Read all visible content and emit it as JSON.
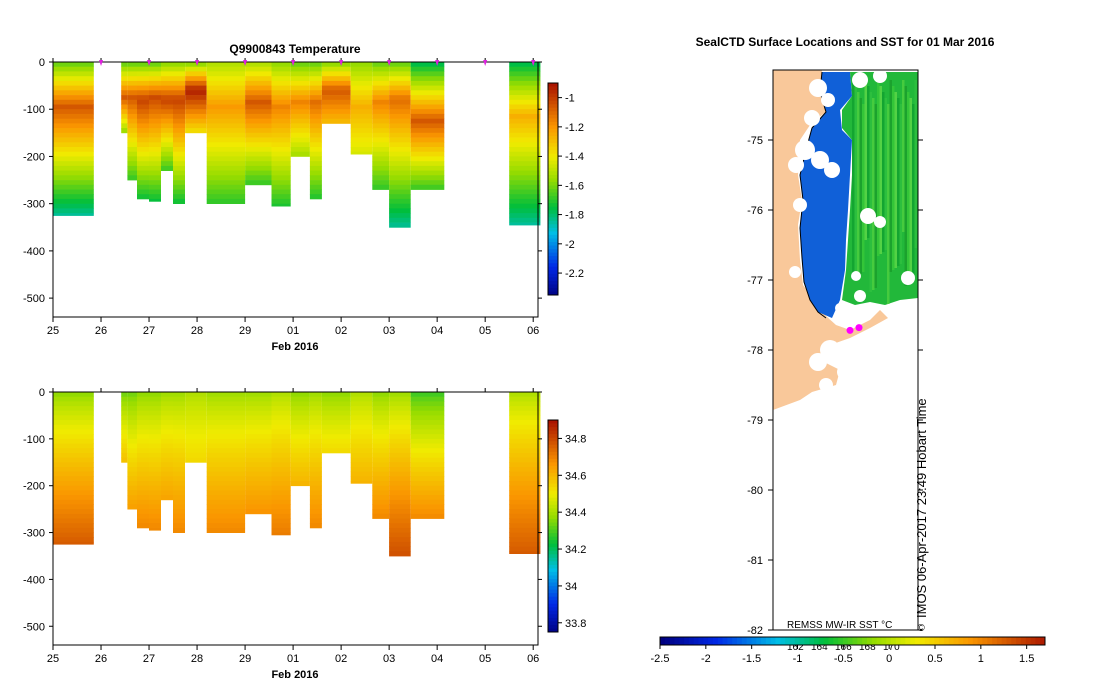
{
  "chart_data": [
    {
      "type": "heatmap",
      "id": "temperature",
      "title": "Q9900843  Temperature",
      "xlabel": "Feb 2016",
      "x_ticks": [
        "25",
        "26",
        "27",
        "28",
        "29",
        "01",
        "02",
        "03",
        "04",
        "05",
        "06"
      ],
      "xlim": [
        0,
        10.1
      ],
      "ylim": [
        -540,
        0
      ],
      "y_ticks": [
        0,
        -100,
        -200,
        -300,
        -400,
        -500
      ],
      "y_tick_labels": [
        "0",
        "-100",
        "-200",
        "-300",
        "-400",
        "-500"
      ],
      "colorbar": {
        "min": -2.35,
        "max": -0.9,
        "ticks": [
          -1,
          -1.2,
          -1.4,
          -1.6,
          -1.8,
          -2,
          -2.2
        ],
        "tick_labels": [
          "-1",
          "-1.2",
          "-1.4",
          "-1.6",
          "-1.8",
          "-2",
          "-2.2"
        ]
      },
      "profile_markers_x": [
        1,
        2,
        3,
        4,
        5,
        6,
        7,
        8,
        9,
        10
      ],
      "profiles": [
        {
          "x0": 0.0,
          "x1": 0.85,
          "depth": 325,
          "surface": -1.6,
          "core_depth": 90,
          "core": -1.05,
          "deep": -1.85
        },
        {
          "x0": 1.42,
          "x1": 1.55,
          "depth": 150,
          "surface": -1.6,
          "core_depth": 70,
          "core": -1.05,
          "deep": -1.6
        },
        {
          "x0": 1.55,
          "x1": 1.75,
          "depth": 250,
          "surface": -1.6,
          "core_depth": 70,
          "core": -1.05,
          "deep": -1.7
        },
        {
          "x0": 1.75,
          "x1": 2.0,
          "depth": 290,
          "surface": -1.6,
          "core_depth": 75,
          "core": -1.0,
          "deep": -1.75
        },
        {
          "x0": 2.0,
          "x1": 2.25,
          "depth": 295,
          "surface": -1.6,
          "core_depth": 70,
          "core": -1.02,
          "deep": -1.75
        },
        {
          "x0": 2.25,
          "x1": 2.5,
          "depth": 230,
          "surface": -1.55,
          "core_depth": 75,
          "core": -1.0,
          "deep": -1.7
        },
        {
          "x0": 2.5,
          "x1": 2.75,
          "depth": 300,
          "surface": -1.55,
          "core_depth": 75,
          "core": -1.0,
          "deep": -1.75
        },
        {
          "x0": 2.75,
          "x1": 3.2,
          "depth": 150,
          "surface": -1.55,
          "core_depth": 55,
          "core": -0.92,
          "deep": -1.4
        },
        {
          "x0": 3.2,
          "x1": 4.0,
          "depth": 300,
          "surface": -1.5,
          "core_depth": 90,
          "core": -1.2,
          "deep": -1.7
        },
        {
          "x0": 4.0,
          "x1": 4.55,
          "depth": 260,
          "surface": -1.5,
          "core_depth": 80,
          "core": -1.05,
          "deep": -1.7
        },
        {
          "x0": 4.55,
          "x1": 4.95,
          "depth": 305,
          "surface": -1.55,
          "core_depth": 90,
          "core": -1.15,
          "deep": -1.72
        },
        {
          "x0": 4.95,
          "x1": 5.35,
          "depth": 200,
          "surface": -1.6,
          "core_depth": 80,
          "core": -1.15,
          "deep": -1.55
        },
        {
          "x0": 5.35,
          "x1": 5.6,
          "depth": 290,
          "surface": -1.6,
          "core_depth": 80,
          "core": -1.1,
          "deep": -1.72
        },
        {
          "x0": 5.6,
          "x1": 6.2,
          "depth": 130,
          "surface": -1.55,
          "core_depth": 55,
          "core": -1.05,
          "deep": -1.3
        },
        {
          "x0": 6.2,
          "x1": 6.65,
          "depth": 195,
          "surface": -1.55,
          "core_depth": 90,
          "core": -1.25,
          "deep": -1.45
        },
        {
          "x0": 6.65,
          "x1": 7.0,
          "depth": 270,
          "surface": -1.6,
          "core_depth": 80,
          "core": -1.15,
          "deep": -1.7
        },
        {
          "x0": 7.0,
          "x1": 7.45,
          "depth": 350,
          "surface": -1.6,
          "core_depth": 75,
          "core": -1.1,
          "deep": -1.85
        },
        {
          "x0": 7.45,
          "x1": 8.15,
          "depth": 270,
          "surface": -1.75,
          "core_depth": 120,
          "core": -1.05,
          "deep": -1.7
        },
        {
          "x0": 9.5,
          "x1": 10.15,
          "depth": 345,
          "surface": -1.75,
          "core_depth": 110,
          "core": -1.25,
          "deep": -1.85
        }
      ]
    },
    {
      "type": "heatmap",
      "id": "salinity",
      "title": "",
      "xlabel": "Feb 2016",
      "x_ticks": [
        "25",
        "26",
        "27",
        "28",
        "29",
        "01",
        "02",
        "03",
        "04",
        "05",
        "06"
      ],
      "xlim": [
        0,
        10.1
      ],
      "ylim": [
        -540,
        0
      ],
      "y_ticks": [
        0,
        -100,
        -200,
        -300,
        -400,
        -500
      ],
      "y_tick_labels": [
        "0",
        "-100",
        "-200",
        "-300",
        "-400",
        "-500"
      ],
      "colorbar": {
        "min": 33.75,
        "max": 34.9,
        "ticks": [
          34.8,
          34.6,
          34.4,
          34.2,
          34,
          33.8
        ],
        "tick_labels": [
          "34.8",
          "34.6",
          "34.4",
          "34.2",
          "34",
          "33.8"
        ]
      },
      "profiles": [
        {
          "x0": 0.0,
          "x1": 0.85,
          "depth": 325,
          "surface": 34.38,
          "bottom": 34.78
        },
        {
          "x0": 1.42,
          "x1": 1.55,
          "depth": 150,
          "surface": 34.35,
          "bottom": 34.6
        },
        {
          "x0": 1.55,
          "x1": 1.75,
          "depth": 250,
          "surface": 34.35,
          "bottom": 34.66
        },
        {
          "x0": 1.75,
          "x1": 2.0,
          "depth": 290,
          "surface": 34.38,
          "bottom": 34.7
        },
        {
          "x0": 2.0,
          "x1": 2.25,
          "depth": 295,
          "surface": 34.38,
          "bottom": 34.7
        },
        {
          "x0": 2.25,
          "x1": 2.5,
          "depth": 230,
          "surface": 34.4,
          "bottom": 34.65
        },
        {
          "x0": 2.5,
          "x1": 2.75,
          "depth": 300,
          "surface": 34.4,
          "bottom": 34.7
        },
        {
          "x0": 2.75,
          "x1": 3.2,
          "depth": 150,
          "surface": 34.42,
          "bottom": 34.55
        },
        {
          "x0": 3.2,
          "x1": 4.0,
          "depth": 300,
          "surface": 34.4,
          "bottom": 34.7
        },
        {
          "x0": 4.0,
          "x1": 4.55,
          "depth": 260,
          "surface": 34.4,
          "bottom": 34.68
        },
        {
          "x0": 4.55,
          "x1": 4.95,
          "depth": 305,
          "surface": 34.42,
          "bottom": 34.72
        },
        {
          "x0": 4.95,
          "x1": 5.35,
          "depth": 200,
          "surface": 34.38,
          "bottom": 34.62
        },
        {
          "x0": 5.35,
          "x1": 5.6,
          "depth": 290,
          "surface": 34.4,
          "bottom": 34.7
        },
        {
          "x0": 5.6,
          "x1": 6.2,
          "depth": 130,
          "surface": 34.38,
          "bottom": 34.55
        },
        {
          "x0": 6.2,
          "x1": 6.65,
          "depth": 195,
          "surface": 34.42,
          "bottom": 34.62
        },
        {
          "x0": 6.65,
          "x1": 7.0,
          "depth": 270,
          "surface": 34.38,
          "bottom": 34.7
        },
        {
          "x0": 7.0,
          "x1": 7.45,
          "depth": 350,
          "surface": 34.4,
          "bottom": 34.8
        },
        {
          "x0": 7.45,
          "x1": 8.15,
          "depth": 270,
          "surface": 34.3,
          "bottom": 34.7
        },
        {
          "x0": 9.5,
          "x1": 10.15,
          "depth": 345,
          "surface": 34.42,
          "bottom": 34.78
        }
      ]
    },
    {
      "type": "heatmap",
      "id": "sst-map",
      "title": "SealCTD Surface Locations and SST for 01 Mar 2016",
      "ylim": [
        -82,
        -74
      ],
      "y_ticks": [
        -75,
        -76,
        -77,
        -78,
        -79,
        -80,
        -81,
        -82
      ],
      "y_tick_labels": [
        "-75",
        "-76",
        "-77",
        "-78",
        "-79",
        "-80",
        "-81",
        "-82"
      ],
      "x_tick_labels_top": [
        "162",
        "164",
        "166",
        "168",
        "170"
      ],
      "colorbar": {
        "min": -2.5,
        "max": 1.7,
        "ticks": [
          -2.5,
          -2,
          -1.5,
          -1,
          -0.5,
          0,
          0.5,
          1,
          1.5
        ],
        "tick_labels": [
          "-2.5",
          "-2",
          "-1.5",
          "-1",
          "-0.5",
          "0",
          "0.5",
          "1",
          "1.5"
        ]
      },
      "sst_label": "REMSS MW-IR SST °C",
      "credit": "IMOS 06-Apr-2017 23:49 Hobart Time",
      "seal_locations_lat": [
        -77.72,
        -77.68
      ],
      "colors": {
        "land": "#f9c89a",
        "ice_cold": "#1060d8",
        "ice_white": "#ffffff",
        "marker": "#ff00ff"
      }
    }
  ]
}
